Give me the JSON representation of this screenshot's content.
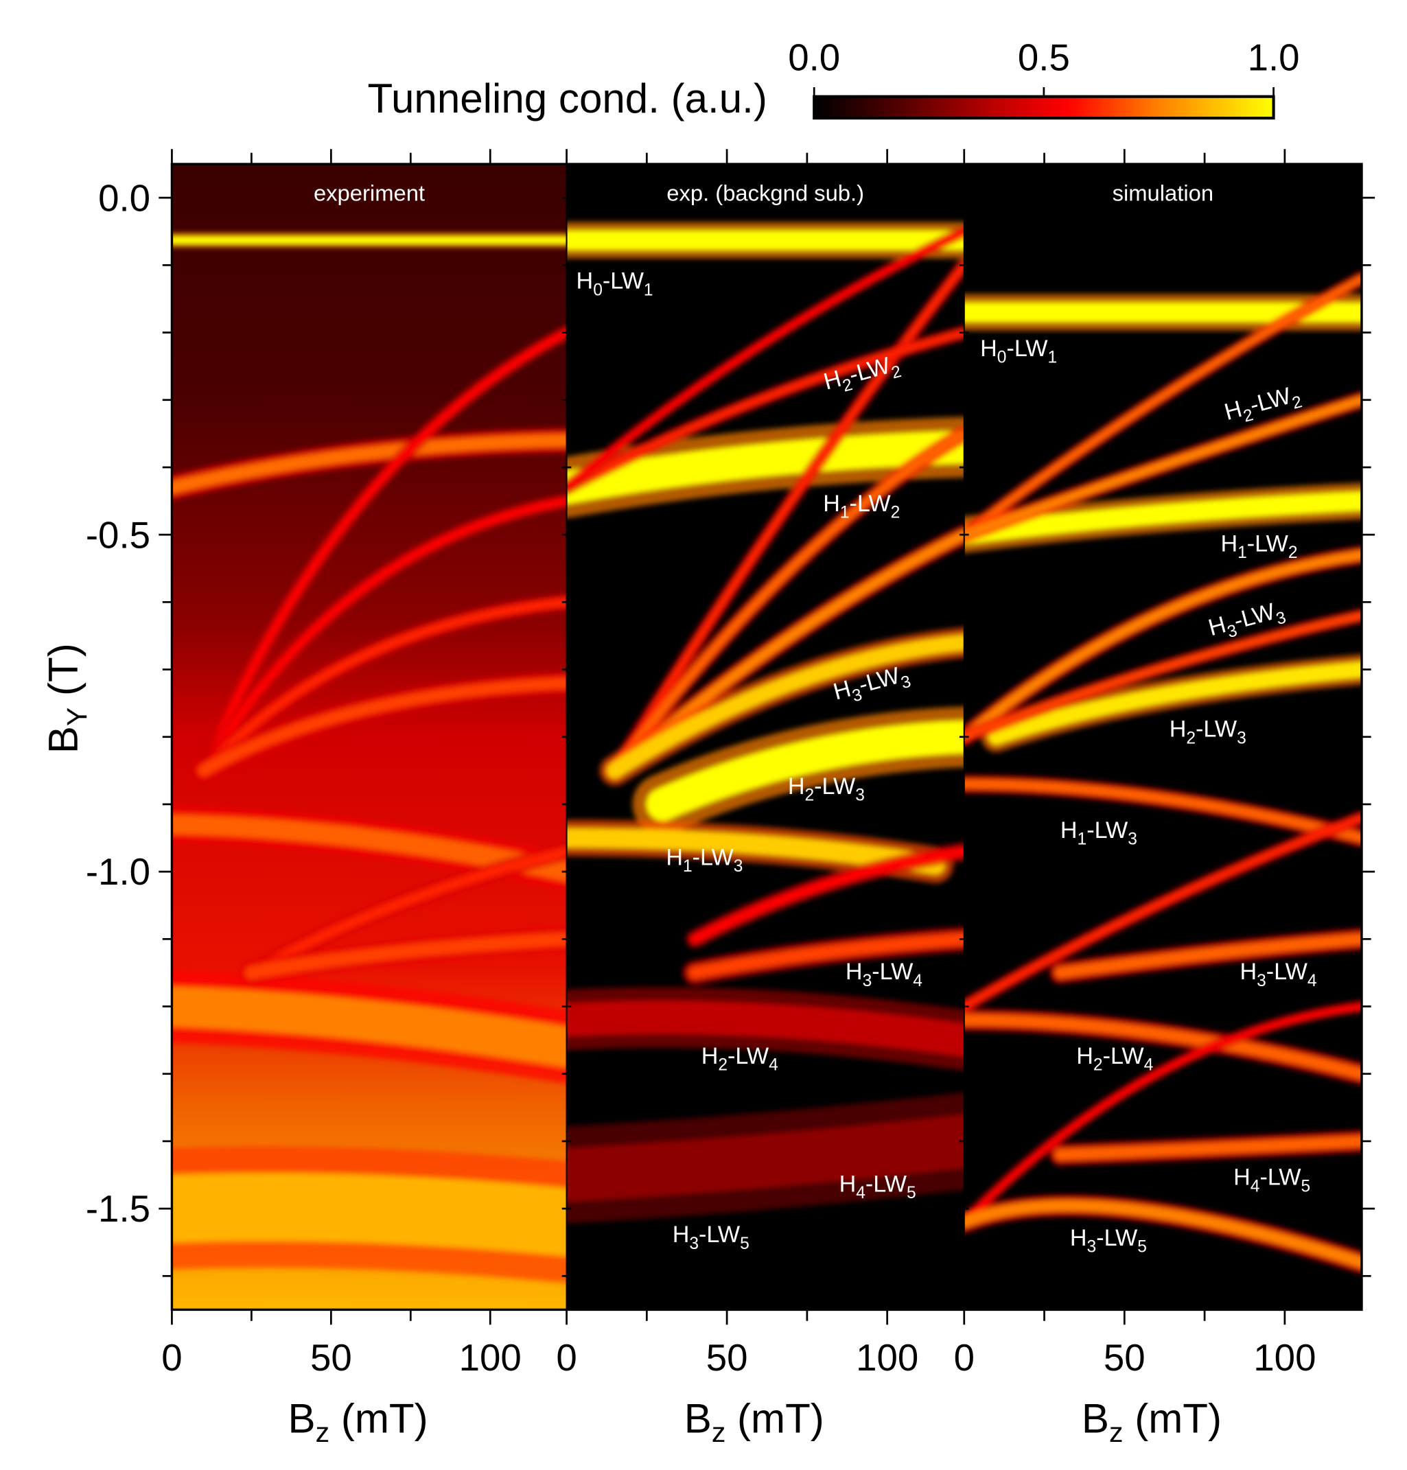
{
  "chart_data": {
    "type": "heatmap",
    "colorbar": {
      "label": "Tunneling cond. (a.u.)",
      "ticks": [
        "0.0",
        "0.5",
        "1.0"
      ],
      "range": [
        0,
        1
      ],
      "colormap": [
        "#000000",
        "#5a0000",
        "#c00000",
        "#ff0000",
        "#ff8000",
        "#ffff00"
      ]
    },
    "ylabel": {
      "main": "B",
      "sub": "Y",
      "unit": " (T)"
    },
    "ylim": [
      -1.65,
      0.05
    ],
    "yticks": [
      "0.0",
      "-0.5",
      "-1.0",
      "-1.5"
    ],
    "ytick_values": [
      0,
      -0.5,
      -1.0,
      -1.5
    ],
    "panels": [
      {
        "title": "experiment",
        "xlabel": {
          "main": "B",
          "sub": "z",
          "unit": " (mT)"
        },
        "xlim": [
          0,
          124
        ],
        "xticks": [
          "0",
          "50",
          "100"
        ],
        "background": "experiment",
        "annotations": [],
        "bands": [
          {
            "pts": [
              [
                0,
                -0.063
              ],
              [
                62,
                -0.063
              ],
              [
                124,
                -0.063
              ]
            ],
            "w": 0.012,
            "i": 1.0
          },
          {
            "pts": [
              [
                0,
                -0.43
              ],
              [
                60,
                -0.38
              ],
              [
                124,
                -0.36
              ]
            ],
            "w": 0.02,
            "i": 0.72
          },
          {
            "pts": [
              [
                0,
                -0.93
              ],
              [
                60,
                -0.95
              ],
              [
                124,
                -1.0
              ]
            ],
            "w": 0.03,
            "i": 0.7
          },
          {
            "pts": [
              [
                0,
                -1.2
              ],
              [
                60,
                -1.22
              ],
              [
                124,
                -1.26
              ]
            ],
            "w": 0.06,
            "i": 0.75
          },
          {
            "pts": [
              [
                0,
                -1.5
              ],
              [
                60,
                -1.5
              ],
              [
                124,
                -1.52
              ]
            ],
            "w": 0.1,
            "i": 0.85
          },
          {
            "pts": [
              [
                10,
                -0.85
              ],
              [
                60,
                -0.45
              ],
              [
                124,
                -0.2
              ]
            ],
            "w": 0.012,
            "i": 0.55
          },
          {
            "pts": [
              [
                10,
                -0.85
              ],
              [
                60,
                -0.58
              ],
              [
                124,
                -0.45
              ]
            ],
            "w": 0.012,
            "i": 0.55
          },
          {
            "pts": [
              [
                10,
                -0.85
              ],
              [
                60,
                -0.68
              ],
              [
                124,
                -0.6
              ]
            ],
            "w": 0.014,
            "i": 0.6
          },
          {
            "pts": [
              [
                10,
                -0.85
              ],
              [
                60,
                -0.76
              ],
              [
                124,
                -0.72
              ]
            ],
            "w": 0.018,
            "i": 0.65
          },
          {
            "pts": [
              [
                25,
                -1.15
              ],
              [
                70,
                -1.05
              ],
              [
                124,
                -0.97
              ]
            ],
            "w": 0.015,
            "i": 0.6
          },
          {
            "pts": [
              [
                25,
                -1.15
              ],
              [
                70,
                -1.12
              ],
              [
                124,
                -1.1
              ]
            ],
            "w": 0.02,
            "i": 0.65
          }
        ]
      },
      {
        "title": "exp. (backgnd sub.)",
        "xlabel": {
          "main": "B",
          "sub": "z",
          "unit": " (mT)"
        },
        "xlim": [
          0,
          124
        ],
        "xticks": [
          "0",
          "50",
          "100"
        ],
        "background": "dark",
        "annotations": [
          {
            "h": "0",
            "lw": "1",
            "bz": 3,
            "by": -0.135,
            "rot": 0
          },
          {
            "h": "2",
            "lw": "2",
            "bz": 81,
            "by": -0.285,
            "rot": -15
          },
          {
            "h": "1",
            "lw": "2",
            "bz": 80,
            "by": -0.465,
            "rot": 0
          },
          {
            "h": "3",
            "lw": "3",
            "bz": 84,
            "by": -0.745,
            "rot": -15
          },
          {
            "h": "2",
            "lw": "3",
            "bz": 69,
            "by": -0.885,
            "rot": 0
          },
          {
            "h": "1",
            "lw": "3",
            "bz": 31,
            "by": -0.99,
            "rot": 0
          },
          {
            "h": "3",
            "lw": "4",
            "bz": 87,
            "by": -1.16,
            "rot": 0
          },
          {
            "h": "2",
            "lw": "4",
            "bz": 42,
            "by": -1.285,
            "rot": 0
          },
          {
            "h": "4",
            "lw": "5",
            "bz": 85,
            "by": -1.475,
            "rot": 0
          },
          {
            "h": "3",
            "lw": "5",
            "bz": 33,
            "by": -1.55,
            "rot": 0
          }
        ],
        "bands": [
          {
            "pts": [
              [
                0,
                -0.063
              ],
              [
                62,
                -0.063
              ],
              [
                124,
                -0.063
              ]
            ],
            "w": 0.03,
            "i": 1.0
          },
          {
            "pts": [
              [
                0,
                -0.43
              ],
              [
                60,
                -0.39
              ],
              [
                124,
                -0.37
              ]
            ],
            "w": 0.05,
            "i": 1.0
          },
          {
            "pts": [
              [
                30,
                -0.9
              ],
              [
                75,
                -0.83
              ],
              [
                124,
                -0.8
              ]
            ],
            "w": 0.05,
            "i": 1.0
          },
          {
            "pts": [
              [
                0,
                -0.95
              ],
              [
                60,
                -0.96
              ],
              [
                115,
                -0.99
              ]
            ],
            "w": 0.03,
            "i": 0.9
          },
          {
            "pts": [
              [
                15,
                -0.85
              ],
              [
                70,
                -0.45
              ],
              [
                124,
                -0.1
              ]
            ],
            "w": 0.012,
            "i": 0.6
          },
          {
            "pts": [
              [
                15,
                -0.85
              ],
              [
                70,
                -0.55
              ],
              [
                124,
                -0.35
              ]
            ],
            "w": 0.014,
            "i": 0.7
          },
          {
            "pts": [
              [
                15,
                -0.85
              ],
              [
                70,
                -0.65
              ],
              [
                124,
                -0.5
              ]
            ],
            "w": 0.016,
            "i": 0.75
          },
          {
            "pts": [
              [
                15,
                -0.85
              ],
              [
                70,
                -0.72
              ],
              [
                124,
                -0.66
              ]
            ],
            "w": 0.025,
            "i": 0.9
          },
          {
            "pts": [
              [
                0,
                -0.43
              ],
              [
                60,
                -0.3
              ],
              [
                124,
                -0.2
              ]
            ],
            "w": 0.012,
            "i": 0.6
          },
          {
            "pts": [
              [
                0,
                -0.43
              ],
              [
                60,
                -0.22
              ],
              [
                124,
                -0.05
              ]
            ],
            "w": 0.01,
            "i": 0.55
          },
          {
            "pts": [
              [
                40,
                -1.15
              ],
              [
                80,
                -1.12
              ],
              [
                124,
                -1.1
              ]
            ],
            "w": 0.02,
            "i": 0.65
          },
          {
            "pts": [
              [
                40,
                -1.1
              ],
              [
                80,
                -1.02
              ],
              [
                124,
                -0.97
              ]
            ],
            "w": 0.015,
            "i": 0.55
          },
          {
            "pts": [
              [
                0,
                -1.22
              ],
              [
                60,
                -1.22
              ],
              [
                124,
                -1.25
              ]
            ],
            "w": 0.05,
            "i": 0.4
          },
          {
            "pts": [
              [
                0,
                -1.45
              ],
              [
                60,
                -1.43
              ],
              [
                124,
                -1.4
              ]
            ],
            "w": 0.08,
            "i": 0.3
          }
        ]
      },
      {
        "title": "simulation",
        "xlabel": {
          "main": "B",
          "sub": "z",
          "unit": " (mT)"
        },
        "xlim": [
          0,
          124
        ],
        "xticks": [
          "0",
          "50",
          "100"
        ],
        "background": "dark",
        "annotations": [
          {
            "h": "0",
            "lw": "1",
            "bz": 5,
            "by": -0.235,
            "rot": 0
          },
          {
            "h": "2",
            "lw": "2",
            "bz": 82,
            "by": -0.33,
            "rot": -15
          },
          {
            "h": "1",
            "lw": "2",
            "bz": 80,
            "by": -0.525,
            "rot": 0
          },
          {
            "h": "3",
            "lw": "3",
            "bz": 77,
            "by": -0.65,
            "rot": -15
          },
          {
            "h": "2",
            "lw": "3",
            "bz": 64,
            "by": -0.8,
            "rot": 0
          },
          {
            "h": "1",
            "lw": "3",
            "bz": 30,
            "by": -0.95,
            "rot": 0
          },
          {
            "h": "3",
            "lw": "4",
            "bz": 86,
            "by": -1.16,
            "rot": 0
          },
          {
            "h": "2",
            "lw": "4",
            "bz": 35,
            "by": -1.285,
            "rot": 0
          },
          {
            "h": "4",
            "lw": "5",
            "bz": 84,
            "by": -1.465,
            "rot": 0
          },
          {
            "h": "3",
            "lw": "5",
            "bz": 33,
            "by": -1.555,
            "rot": 0
          }
        ],
        "bands": [
          {
            "pts": [
              [
                0,
                -0.17
              ],
              [
                62,
                -0.17
              ],
              [
                124,
                -0.17
              ]
            ],
            "w": 0.03,
            "i": 1.0
          },
          {
            "pts": [
              [
                0,
                -0.5
              ],
              [
                60,
                -0.47
              ],
              [
                124,
                -0.45
              ]
            ],
            "w": 0.03,
            "i": 1.0
          },
          {
            "pts": [
              [
                0,
                -0.87
              ],
              [
                60,
                -0.89
              ],
              [
                124,
                -0.95
              ]
            ],
            "w": 0.015,
            "i": 0.7
          },
          {
            "pts": [
              [
                10,
                -0.8
              ],
              [
                60,
                -0.74
              ],
              [
                124,
                -0.7
              ]
            ],
            "w": 0.025,
            "i": 0.95
          },
          {
            "pts": [
              [
                0,
                -0.5
              ],
              [
                60,
                -0.3
              ],
              [
                124,
                -0.12
              ]
            ],
            "w": 0.012,
            "i": 0.7
          },
          {
            "pts": [
              [
                0,
                -0.5
              ],
              [
                60,
                -0.4
              ],
              [
                124,
                -0.3
              ]
            ],
            "w": 0.014,
            "i": 0.75
          },
          {
            "pts": [
              [
                0,
                -0.8
              ],
              [
                60,
                -0.62
              ],
              [
                124,
                -0.53
              ]
            ],
            "w": 0.015,
            "i": 0.75
          },
          {
            "pts": [
              [
                0,
                -0.8
              ],
              [
                60,
                -0.7
              ],
              [
                124,
                -0.62
              ]
            ],
            "w": 0.012,
            "i": 0.65
          },
          {
            "pts": [
              [
                0,
                -1.2
              ],
              [
                60,
                -1.05
              ],
              [
                124,
                -0.92
              ]
            ],
            "w": 0.012,
            "i": 0.6
          },
          {
            "pts": [
              [
                30,
                -1.15
              ],
              [
                80,
                -1.12
              ],
              [
                124,
                -1.1
              ]
            ],
            "w": 0.018,
            "i": 0.7
          },
          {
            "pts": [
              [
                0,
                -1.22
              ],
              [
                60,
                -1.24
              ],
              [
                124,
                -1.3
              ]
            ],
            "w": 0.018,
            "i": 0.7
          },
          {
            "pts": [
              [
                0,
                -1.52
              ],
              [
                60,
                -1.3
              ],
              [
                124,
                -1.2
              ]
            ],
            "w": 0.01,
            "i": 0.55
          },
          {
            "pts": [
              [
                30,
                -1.42
              ],
              [
                80,
                -1.41
              ],
              [
                124,
                -1.4
              ]
            ],
            "w": 0.018,
            "i": 0.7
          },
          {
            "pts": [
              [
                0,
                -1.52
              ],
              [
                50,
                -1.5
              ],
              [
                124,
                -1.58
              ]
            ],
            "w": 0.018,
            "i": 0.75
          }
        ]
      }
    ]
  }
}
